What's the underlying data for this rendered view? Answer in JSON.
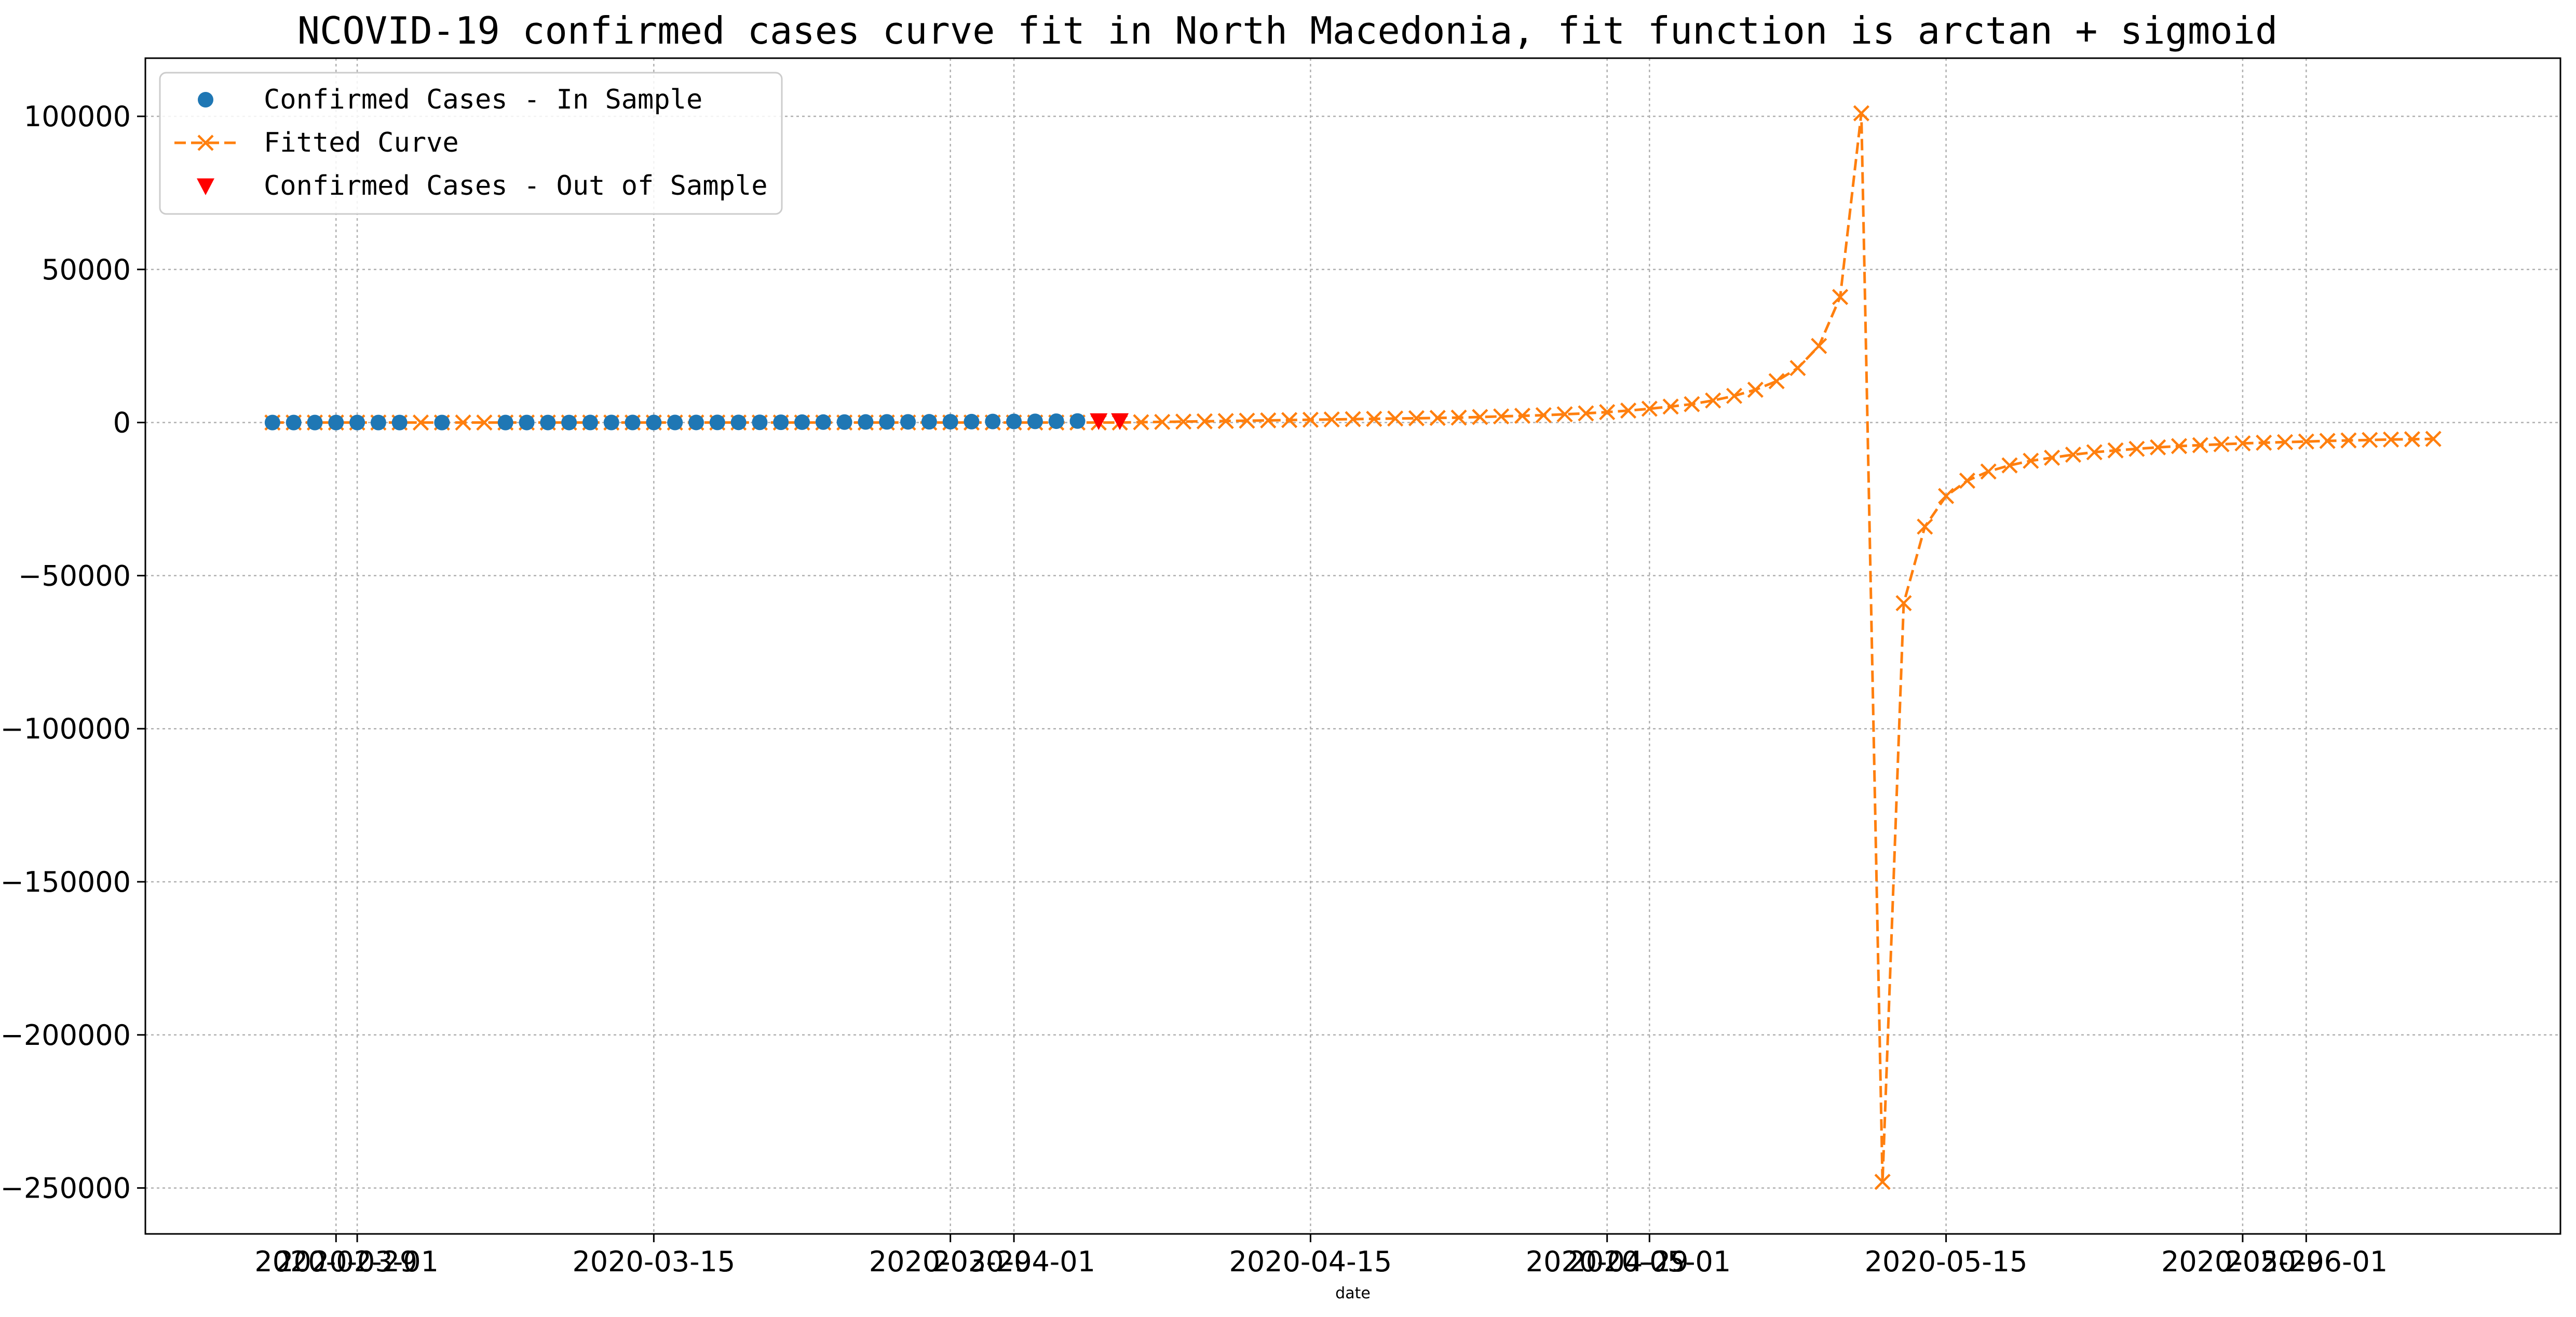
{
  "chart_data": {
    "type": "line",
    "title": "NCOVID-19 confirmed cases curve fit in North Macedonia, fit function is arctan + sigmoid",
    "xlabel": "date",
    "ylabel": "",
    "x_type": "date",
    "xlim": [
      "2020-02-20",
      "2020-06-13"
    ],
    "ylim": [
      -265000,
      119000
    ],
    "grid": true,
    "legend_position": "top-left",
    "x_ticks": [
      {
        "date": "2020-02-29",
        "label": "2020-02-29"
      },
      {
        "date": "2020-03-01",
        "label": "2020-03-01"
      },
      {
        "date": "2020-03-15",
        "label": "2020-03-15"
      },
      {
        "date": "2020-03-29",
        "label": "2020-03-29"
      },
      {
        "date": "2020-04-01",
        "label": "2020-04-01"
      },
      {
        "date": "2020-04-15",
        "label": "2020-04-15"
      },
      {
        "date": "2020-04-29",
        "label": "2020-04-29"
      },
      {
        "date": "2020-05-01",
        "label": "2020-05-01"
      },
      {
        "date": "2020-05-15",
        "label": "2020-05-15"
      },
      {
        "date": "2020-05-29",
        "label": "2020-05-29"
      },
      {
        "date": "2020-06-01",
        "label": "2020-06-01"
      }
    ],
    "y_ticks": [
      {
        "value": 100000,
        "label": "100000"
      },
      {
        "value": 50000,
        "label": "50000"
      },
      {
        "value": 0,
        "label": "0"
      },
      {
        "value": -50000,
        "label": "−50000"
      },
      {
        "value": -100000,
        "label": "−100000"
      },
      {
        "value": -150000,
        "label": "−150000"
      },
      {
        "value": -200000,
        "label": "−200000"
      },
      {
        "value": -250000,
        "label": "−250000"
      }
    ],
    "series": [
      {
        "name": "Confirmed Cases - In Sample",
        "marker": "circle",
        "color": "#1f77b4",
        "points": [
          {
            "x": "2020-02-26",
            "y": 1
          },
          {
            "x": "2020-02-27",
            "y": 1
          },
          {
            "x": "2020-02-28",
            "y": 1
          },
          {
            "x": "2020-02-29",
            "y": 1
          },
          {
            "x": "2020-03-01",
            "y": 1
          },
          {
            "x": "2020-03-02",
            "y": 1
          },
          {
            "x": "2020-03-03",
            "y": 1
          },
          {
            "x": "2020-03-05",
            "y": 3
          },
          {
            "x": "2020-03-08",
            "y": 3
          },
          {
            "x": "2020-03-09",
            "y": 7
          },
          {
            "x": "2020-03-10",
            "y": 7
          },
          {
            "x": "2020-03-11",
            "y": 7
          },
          {
            "x": "2020-03-12",
            "y": 9
          },
          {
            "x": "2020-03-13",
            "y": 14
          },
          {
            "x": "2020-03-14",
            "y": 14
          },
          {
            "x": "2020-03-15",
            "y": 14
          },
          {
            "x": "2020-03-16",
            "y": 18
          },
          {
            "x": "2020-03-17",
            "y": 26
          },
          {
            "x": "2020-03-18",
            "y": 35
          },
          {
            "x": "2020-03-19",
            "y": 48
          },
          {
            "x": "2020-03-20",
            "y": 67
          },
          {
            "x": "2020-03-21",
            "y": 85
          },
          {
            "x": "2020-03-22",
            "y": 114
          },
          {
            "x": "2020-03-23",
            "y": 136
          },
          {
            "x": "2020-03-24",
            "y": 148
          },
          {
            "x": "2020-03-25",
            "y": 177
          },
          {
            "x": "2020-03-26",
            "y": 201
          },
          {
            "x": "2020-03-27",
            "y": 219
          },
          {
            "x": "2020-03-28",
            "y": 241
          },
          {
            "x": "2020-03-29",
            "y": 259
          },
          {
            "x": "2020-03-30",
            "y": 285
          },
          {
            "x": "2020-03-31",
            "y": 329
          },
          {
            "x": "2020-04-01",
            "y": 354
          },
          {
            "x": "2020-04-02",
            "y": 384
          },
          {
            "x": "2020-04-03",
            "y": 430
          },
          {
            "x": "2020-04-04",
            "y": 483
          }
        ]
      },
      {
        "name": "Fitted Curve",
        "marker": "x",
        "line": "dashed",
        "color": "#ff7f0e",
        "points": [
          {
            "x": "2020-02-26",
            "y": 0
          },
          {
            "x": "2020-02-27",
            "y": 0
          },
          {
            "x": "2020-02-28",
            "y": 0
          },
          {
            "x": "2020-02-29",
            "y": 0
          },
          {
            "x": "2020-03-01",
            "y": 0
          },
          {
            "x": "2020-03-02",
            "y": 0
          },
          {
            "x": "2020-03-03",
            "y": 0
          },
          {
            "x": "2020-03-04",
            "y": 0
          },
          {
            "x": "2020-03-05",
            "y": 0
          },
          {
            "x": "2020-03-06",
            "y": 0
          },
          {
            "x": "2020-03-07",
            "y": 0
          },
          {
            "x": "2020-03-08",
            "y": 0
          },
          {
            "x": "2020-03-09",
            "y": 0
          },
          {
            "x": "2020-03-10",
            "y": 0
          },
          {
            "x": "2020-03-11",
            "y": 0
          },
          {
            "x": "2020-03-12",
            "y": 0
          },
          {
            "x": "2020-03-13",
            "y": 0
          },
          {
            "x": "2020-03-14",
            "y": 0
          },
          {
            "x": "2020-03-15",
            "y": 0
          },
          {
            "x": "2020-03-16",
            "y": 0
          },
          {
            "x": "2020-03-17",
            "y": 0
          },
          {
            "x": "2020-03-18",
            "y": 0
          },
          {
            "x": "2020-03-19",
            "y": 0
          },
          {
            "x": "2020-03-20",
            "y": 0
          },
          {
            "x": "2020-03-21",
            "y": 0
          },
          {
            "x": "2020-03-22",
            "y": 0
          },
          {
            "x": "2020-03-23",
            "y": 0
          },
          {
            "x": "2020-03-24",
            "y": 0
          },
          {
            "x": "2020-03-25",
            "y": 0
          },
          {
            "x": "2020-03-26",
            "y": 0
          },
          {
            "x": "2020-03-27",
            "y": 0
          },
          {
            "x": "2020-03-28",
            "y": 0
          },
          {
            "x": "2020-03-29",
            "y": 0
          },
          {
            "x": "2020-03-30",
            "y": 0
          },
          {
            "x": "2020-03-31",
            "y": 0
          },
          {
            "x": "2020-04-01",
            "y": 0
          },
          {
            "x": "2020-04-02",
            "y": 0
          },
          {
            "x": "2020-04-03",
            "y": 0
          },
          {
            "x": "2020-04-04",
            "y": 0
          },
          {
            "x": "2020-04-05",
            "y": 0
          },
          {
            "x": "2020-04-06",
            "y": 0
          },
          {
            "x": "2020-04-07",
            "y": 100
          },
          {
            "x": "2020-04-08",
            "y": 200
          },
          {
            "x": "2020-04-09",
            "y": 300
          },
          {
            "x": "2020-04-10",
            "y": 400
          },
          {
            "x": "2020-04-11",
            "y": 500
          },
          {
            "x": "2020-04-12",
            "y": 600
          },
          {
            "x": "2020-04-13",
            "y": 700
          },
          {
            "x": "2020-04-14",
            "y": 800
          },
          {
            "x": "2020-04-15",
            "y": 900
          },
          {
            "x": "2020-04-16",
            "y": 1000
          },
          {
            "x": "2020-04-17",
            "y": 1100
          },
          {
            "x": "2020-04-18",
            "y": 1200
          },
          {
            "x": "2020-04-19",
            "y": 1300
          },
          {
            "x": "2020-04-20",
            "y": 1400
          },
          {
            "x": "2020-04-21",
            "y": 1500
          },
          {
            "x": "2020-04-22",
            "y": 1600
          },
          {
            "x": "2020-04-23",
            "y": 1800
          },
          {
            "x": "2020-04-24",
            "y": 2000
          },
          {
            "x": "2020-04-25",
            "y": 2200
          },
          {
            "x": "2020-04-26",
            "y": 2400
          },
          {
            "x": "2020-04-27",
            "y": 2700
          },
          {
            "x": "2020-04-28",
            "y": 3000
          },
          {
            "x": "2020-04-29",
            "y": 3400
          },
          {
            "x": "2020-04-30",
            "y": 3900
          },
          {
            "x": "2020-05-01",
            "y": 4500
          },
          {
            "x": "2020-05-02",
            "y": 5200
          },
          {
            "x": "2020-05-03",
            "y": 6000
          },
          {
            "x": "2020-05-04",
            "y": 7200
          },
          {
            "x": "2020-05-05",
            "y": 8700
          },
          {
            "x": "2020-05-06",
            "y": 10700
          },
          {
            "x": "2020-05-07",
            "y": 13500
          },
          {
            "x": "2020-05-08",
            "y": 17800
          },
          {
            "x": "2020-05-09",
            "y": 25000
          },
          {
            "x": "2020-05-10",
            "y": 41000
          },
          {
            "x": "2020-05-11",
            "y": 101000
          },
          {
            "x": "2020-05-12",
            "y": -248000
          },
          {
            "x": "2020-05-13",
            "y": -59000
          },
          {
            "x": "2020-05-14",
            "y": -34000
          },
          {
            "x": "2020-05-15",
            "y": -24000
          },
          {
            "x": "2020-05-16",
            "y": -19000
          },
          {
            "x": "2020-05-17",
            "y": -16000
          },
          {
            "x": "2020-05-18",
            "y": -14000
          },
          {
            "x": "2020-05-19",
            "y": -12500
          },
          {
            "x": "2020-05-20",
            "y": -11500
          },
          {
            "x": "2020-05-21",
            "y": -10500
          },
          {
            "x": "2020-05-22",
            "y": -9700
          },
          {
            "x": "2020-05-23",
            "y": -9100
          },
          {
            "x": "2020-05-24",
            "y": -8600
          },
          {
            "x": "2020-05-25",
            "y": -8100
          },
          {
            "x": "2020-05-26",
            "y": -7700
          },
          {
            "x": "2020-05-27",
            "y": -7400
          },
          {
            "x": "2020-05-28",
            "y": -7100
          },
          {
            "x": "2020-05-29",
            "y": -6800
          },
          {
            "x": "2020-05-30",
            "y": -6600
          },
          {
            "x": "2020-05-31",
            "y": -6400
          },
          {
            "x": "2020-06-01",
            "y": -6200
          },
          {
            "x": "2020-06-02",
            "y": -6000
          },
          {
            "x": "2020-06-03",
            "y": -5850
          },
          {
            "x": "2020-06-04",
            "y": -5700
          },
          {
            "x": "2020-06-05",
            "y": -5550
          },
          {
            "x": "2020-06-06",
            "y": -5450
          },
          {
            "x": "2020-06-07",
            "y": -5350
          }
        ]
      },
      {
        "name": "Confirmed Cases - Out of Sample",
        "marker": "triangle-down",
        "color": "#ff0000",
        "points": [
          {
            "x": "2020-04-05",
            "y": 555
          },
          {
            "x": "2020-04-06",
            "y": 570
          }
        ]
      }
    ]
  }
}
